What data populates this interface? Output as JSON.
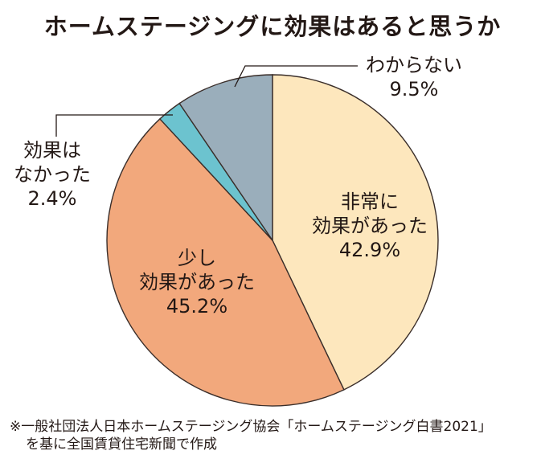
{
  "chart_data": {
    "type": "pie",
    "title": "ホームステージングに効果はあると思うか",
    "slices": [
      {
        "label_lines": [
          "非常に",
          "効果があった"
        ],
        "label": "非常に効果があった",
        "value": 42.9,
        "value_label": "42.9%",
        "color": "#fde7bd"
      },
      {
        "label_lines": [
          "少し",
          "効果があった"
        ],
        "label": "少し効果があった",
        "value": 45.2,
        "value_label": "45.2%",
        "color": "#f2a87c"
      },
      {
        "label_lines": [
          "効果は",
          "なかった"
        ],
        "label": "効果はなかった",
        "value": 2.4,
        "value_label": "2.4%",
        "color": "#6cc3cf"
      },
      {
        "label_lines": [
          "わからない"
        ],
        "label": "わからない",
        "value": 9.5,
        "value_label": "9.5%",
        "color": "#9aaebb"
      }
    ],
    "start_angle": "top",
    "direction": "clockwise"
  },
  "notes": [
    "※一般社団法人日本ホームステージング協会「ホームステージング白書2021」",
    "を基に全国賃貸住宅新聞で作成"
  ]
}
